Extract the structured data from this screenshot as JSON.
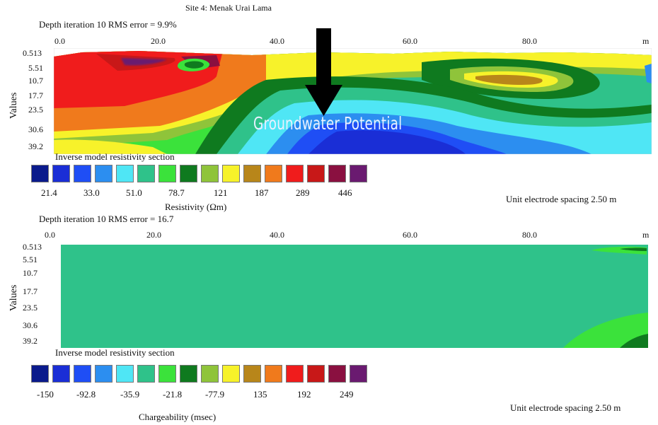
{
  "site_title": "Site 4: Menak Urai Lama",
  "arrow_color": "#000000",
  "sections": [
    {
      "id": "resistivity",
      "iteration_label": "Depth iteration 10 RMS error = 9.9%",
      "x_ticks": [
        "0.0",
        "20.0",
        "40.0",
        "60.0",
        "80.0"
      ],
      "x_unit": "m",
      "y_ticks": [
        "0.513",
        "5.51",
        "10.7",
        "17.7",
        "23.5",
        "30.6",
        "39.2"
      ],
      "y_label": "Values",
      "section_caption": "Inverse model resistivity section",
      "annotation": "Groundwater Potential",
      "scale_labels": [
        "21.4",
        "33.0",
        "51.0",
        "78.7",
        "121",
        "187",
        "289",
        "446"
      ],
      "scale_title": "Resistivity (Ωm)",
      "spacing_label": "Unit electrode spacing 2.50 m"
    },
    {
      "id": "chargeability",
      "iteration_label": "Depth iteration 10 RMS error = 16.7",
      "x_ticks": [
        "0.0",
        "20.0",
        "40.0",
        "60.0",
        "80.0"
      ],
      "x_unit": "m",
      "y_ticks": [
        "0.513",
        "5.51",
        "10.7",
        "17.7",
        "23.5",
        "30.6",
        "39.2"
      ],
      "y_label": "Values",
      "section_caption": "Inverse model resistivity section",
      "scale_labels": [
        "-150",
        "-92.8",
        "-35.9",
        "-21.8",
        "-77.9",
        "135",
        "192",
        "249"
      ],
      "scale_title": "Chargeability (msec)",
      "spacing_label": "Unit electrode spacing 2.50 m"
    }
  ],
  "color_scale": [
    "#0a1a8c",
    "#1a2ed6",
    "#1f4ef5",
    "#2c8ef0",
    "#4fe6f5",
    "#2fc28a",
    "#3be23b",
    "#0f7a1f",
    "#8fc43a",
    "#f7f22a",
    "#b8861a",
    "#f07a1c",
    "#f01c1c",
    "#c81818",
    "#8a1040",
    "#6a1a70"
  ]
}
